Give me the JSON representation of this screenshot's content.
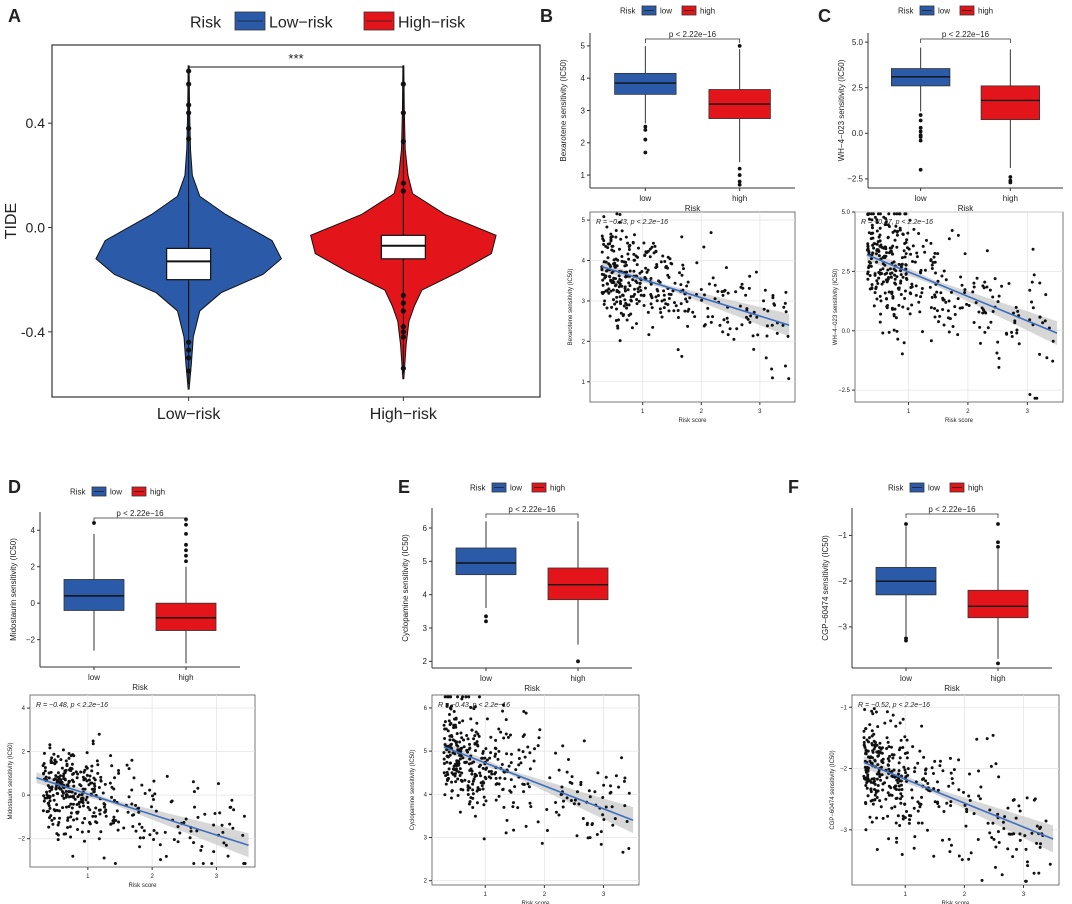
{
  "colors": {
    "low": "#2a5aa8",
    "high": "#e3151b",
    "scatter": "#111111",
    "fit": "#3d6fbf",
    "band": "#c9c9c9"
  },
  "chart_data": [
    {
      "panel": "A",
      "type": "violin",
      "title": "",
      "ylabel": "TIDE",
      "ylim": [
        -0.65,
        0.7
      ],
      "yticks": [
        -0.4,
        0.0,
        0.4
      ],
      "ytick_labels": [
        "-0.4",
        "0.0",
        "0.4"
      ],
      "categories": [
        "Low−risk",
        "High−risk"
      ],
      "legend_title": "Risk",
      "legend": [
        "Low−risk",
        "High−risk"
      ],
      "significance": "***",
      "boxes": [
        {
          "group": "Low−risk",
          "q1": -0.2,
          "median": -0.13,
          "q3": -0.08,
          "whisker_low": -0.4,
          "whisker_high": 0.1,
          "min": -0.6,
          "max": 0.6
        },
        {
          "group": "High−risk",
          "q1": -0.12,
          "median": -0.07,
          "q3": -0.03,
          "whisker_low": -0.28,
          "whisker_high": 0.13,
          "min": -0.56,
          "max": 0.6
        }
      ],
      "outliers": [
        {
          "group": "Low−risk",
          "values": [
            0.6,
            0.55,
            0.47,
            0.44,
            0.38,
            0.34,
            -0.44,
            -0.47,
            -0.5,
            -0.55
          ]
        },
        {
          "group": "High−risk",
          "values": [
            0.55,
            0.44,
            0.33,
            0.17,
            0.14,
            -0.26,
            -0.29,
            -0.32,
            -0.38,
            -0.4,
            -0.42,
            -0.54
          ]
        }
      ]
    },
    {
      "panel": "B",
      "type": "box",
      "ylabel": "Bexarotene sensitivity (IC50)",
      "xlabel": "Risk",
      "categories": [
        "low",
        "high"
      ],
      "legend_title": "Risk",
      "legend": [
        "low",
        "high"
      ],
      "pvalue": "p < 2.22e−16",
      "ylim": [
        0.6,
        5.4
      ],
      "yticks": [
        1,
        2,
        3,
        4,
        5
      ],
      "boxes": [
        {
          "group": "low",
          "q1": 3.5,
          "median": 3.85,
          "q3": 4.15,
          "whisker_low": 2.6,
          "whisker_high": 5.0
        },
        {
          "group": "high",
          "q1": 2.75,
          "median": 3.2,
          "q3": 3.65,
          "whisker_low": 1.4,
          "whisker_high": 4.9
        }
      ],
      "outliers": [
        {
          "group": "low",
          "values": [
            2.5,
            2.4,
            2.1,
            1.7
          ]
        },
        {
          "group": "high",
          "values": [
            5.0,
            1.2,
            1.0,
            0.8,
            0.7
          ]
        }
      ]
    },
    {
      "panel": "B",
      "type": "scatter",
      "ylabel": "Bexarotene sensitivity (IC50)",
      "xlabel": "Risk score",
      "annotation": "R = −0.43, p < 2.2e−16",
      "xlim": [
        0.1,
        3.6
      ],
      "ylim": [
        0.5,
        5.2
      ],
      "xticks": [
        1,
        2,
        3
      ],
      "yticks": [
        1,
        2,
        3,
        4,
        5
      ],
      "fit": {
        "x0": 0.3,
        "y0": 3.85,
        "x1": 3.5,
        "y1": 2.4
      },
      "band": {
        "w0": 0.12,
        "wmid": 0.05,
        "w1": 0.28
      },
      "seed": 11,
      "n_points": 380,
      "noise_sd": 0.58
    },
    {
      "panel": "C",
      "type": "box",
      "ylabel": "WH−4−023 sensitivity (IC50)",
      "xlabel": "Risk",
      "categories": [
        "low",
        "high"
      ],
      "legend_title": "Risk",
      "legend": [
        "low",
        "high"
      ],
      "pvalue": "p < 2.22e−16",
      "ylim": [
        -3.0,
        5.5
      ],
      "yticks": [
        -2.5,
        0.0,
        2.5,
        5.0
      ],
      "ytick_labels": [
        "−2.5",
        "0.0",
        "2.5",
        "5.0"
      ],
      "boxes": [
        {
          "group": "low",
          "q1": 2.6,
          "median": 3.1,
          "q3": 3.55,
          "whisker_low": 1.2,
          "whisker_high": 4.7
        },
        {
          "group": "high",
          "q1": 0.75,
          "median": 1.8,
          "q3": 2.6,
          "whisker_low": -1.9,
          "whisker_high": 4.6
        }
      ],
      "outliers": [
        {
          "group": "low",
          "values": [
            1.0,
            0.7,
            0.3,
            0.1,
            -0.1,
            -0.2,
            -0.4,
            -2.0
          ]
        },
        {
          "group": "high",
          "values": [
            -2.4,
            -2.6,
            -2.7
          ]
        }
      ]
    },
    {
      "panel": "C",
      "type": "scatter",
      "ylabel": "WH−4−023 sensitivity (IC50)",
      "xlabel": "Risk score",
      "annotation": "R = −0.47, p < 2.2e−16",
      "xlim": [
        0.1,
        3.6
      ],
      "ylim": [
        -3.0,
        5.0
      ],
      "xticks": [
        1,
        2,
        3
      ],
      "yticks": [
        -2.5,
        0.0,
        2.5,
        5.0
      ],
      "ytick_labels": [
        "−2.5",
        "0.0",
        "2.5",
        "5.0"
      ],
      "fit": {
        "x0": 0.3,
        "y0": 3.2,
        "x1": 3.5,
        "y1": -0.1
      },
      "band": {
        "w0": 0.25,
        "wmid": 0.1,
        "w1": 0.5
      },
      "seed": 23,
      "n_points": 380,
      "noise_sd": 1.2
    },
    {
      "panel": "D",
      "type": "box",
      "ylabel": "Midostaurin sensitivity (IC50)",
      "xlabel": "Risk",
      "categories": [
        "low",
        "high"
      ],
      "legend_title": "Risk",
      "legend": [
        "low",
        "high"
      ],
      "pvalue": "p < 2.22e−16",
      "ylim": [
        -3.5,
        5.0
      ],
      "yticks": [
        -2,
        0,
        2,
        4
      ],
      "boxes": [
        {
          "group": "low",
          "q1": -0.4,
          "median": 0.4,
          "q3": 1.3,
          "whisker_low": -2.6,
          "whisker_high": 3.8
        },
        {
          "group": "high",
          "q1": -1.5,
          "median": -0.8,
          "q3": 0.0,
          "whisker_low": -3.3,
          "whisker_high": 2.0
        }
      ],
      "outliers": [
        {
          "group": "low",
          "values": [
            4.4
          ]
        },
        {
          "group": "high",
          "values": [
            4.6,
            4.3,
            3.8,
            3.2,
            2.9,
            2.6,
            2.3
          ]
        }
      ]
    },
    {
      "panel": "D",
      "type": "scatter",
      "ylabel": "Midostaurin sensitivity (IC50)",
      "xlabel": "Risk score",
      "annotation": "R = −0.48, p < 2.2e−16",
      "xlim": [
        0.1,
        3.6
      ],
      "ylim": [
        -3.3,
        4.6
      ],
      "xticks": [
        1,
        2,
        3
      ],
      "yticks": [
        -2,
        0,
        2,
        4
      ],
      "fit": {
        "x0": 0.2,
        "y0": 0.8,
        "x1": 3.5,
        "y1": -2.3
      },
      "band": {
        "w0": 0.25,
        "wmid": 0.1,
        "w1": 0.55
      },
      "seed": 37,
      "n_points": 380,
      "noise_sd": 1.05
    },
    {
      "panel": "E",
      "type": "box",
      "ylabel": "Cyclopamine sensitivity (IC50)",
      "xlabel": "Risk",
      "categories": [
        "low",
        "high"
      ],
      "legend_title": "Risk",
      "legend": [
        "low",
        "high"
      ],
      "pvalue": "p < 2.22e−16",
      "ylim": [
        1.8,
        6.6
      ],
      "yticks": [
        2,
        3,
        4,
        5,
        6
      ],
      "boxes": [
        {
          "group": "low",
          "q1": 4.6,
          "median": 4.95,
          "q3": 5.4,
          "whisker_low": 3.6,
          "whisker_high": 6.2
        },
        {
          "group": "high",
          "q1": 3.85,
          "median": 4.3,
          "q3": 4.8,
          "whisker_low": 2.5,
          "whisker_high": 6.2
        }
      ],
      "outliers": [
        {
          "group": "low",
          "values": [
            3.35,
            3.2
          ]
        },
        {
          "group": "high",
          "values": [
            2.0
          ]
        }
      ]
    },
    {
      "panel": "E",
      "type": "scatter",
      "ylabel": "Cyclopamine sensitivity (IC50)",
      "xlabel": "Risk score",
      "annotation": "R = −0.43, p < 2.2e−16",
      "xlim": [
        0.1,
        3.6
      ],
      "ylim": [
        1.9,
        6.3
      ],
      "xticks": [
        1,
        2,
        3
      ],
      "yticks": [
        2,
        3,
        4,
        5,
        6
      ],
      "fit": {
        "x0": 0.3,
        "y0": 5.1,
        "x1": 3.5,
        "y1": 3.4
      },
      "band": {
        "w0": 0.12,
        "wmid": 0.05,
        "w1": 0.3
      },
      "seed": 53,
      "n_points": 380,
      "noise_sd": 0.62
    },
    {
      "panel": "F",
      "type": "box",
      "ylabel": "CGP−60474 sensitivity (IC50)",
      "xlabel": "Risk",
      "categories": [
        "low",
        "high"
      ],
      "legend_title": "Risk",
      "legend": [
        "low",
        "high"
      ],
      "pvalue": "p < 2.22e−16",
      "ylim": [
        -3.9,
        -0.4
      ],
      "yticks": [
        -3,
        -2,
        -1
      ],
      "boxes": [
        {
          "group": "low",
          "q1": -2.3,
          "median": -2.0,
          "q3": -1.7,
          "whisker_low": -3.2,
          "whisker_high": -0.8
        },
        {
          "group": "high",
          "q1": -2.8,
          "median": -2.55,
          "q3": -2.2,
          "whisker_low": -3.7,
          "whisker_high": -1.3
        }
      ],
      "outliers": [
        {
          "group": "low",
          "values": [
            -0.75,
            -3.25,
            -3.3
          ]
        },
        {
          "group": "high",
          "values": [
            -0.75,
            -1.15,
            -1.25,
            -3.8
          ]
        }
      ]
    },
    {
      "panel": "F",
      "type": "scatter",
      "ylabel": "CGP−60474 sensitivity (IC50)",
      "xlabel": "Risk score",
      "annotation": "R = −0.52, p < 2.2e−16",
      "xlim": [
        0.1,
        3.6
      ],
      "ylim": [
        -3.9,
        -0.8
      ],
      "xticks": [
        1,
        2,
        3
      ],
      "yticks": [
        -3,
        -2,
        -1
      ],
      "fit": {
        "x0": 0.3,
        "y0": -1.9,
        "x1": 3.5,
        "y1": -3.15
      },
      "band": {
        "w0": 0.1,
        "wmid": 0.04,
        "w1": 0.22
      },
      "seed": 71,
      "n_points": 380,
      "noise_sd": 0.43
    }
  ],
  "panel_labels": [
    "A",
    "B",
    "C",
    "D",
    "E",
    "F"
  ]
}
